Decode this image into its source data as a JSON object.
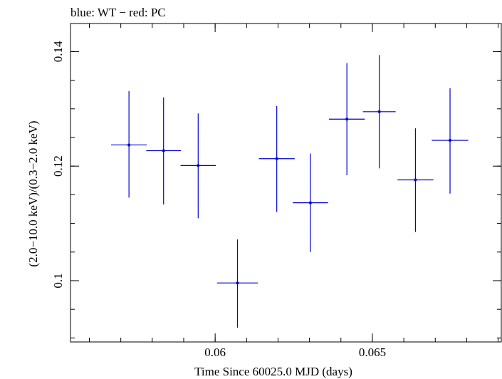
{
  "chart_data": {
    "type": "scatter",
    "title": "blue: WT − red: PC",
    "xlabel": "Time Since 60025.0 MJD (days)",
    "ylabel": "(2.0−10.0 keV)/(0.3−2.0 keV)",
    "xlim": [
      0.0554,
      0.0691
    ],
    "ylim": [
      0.0893,
      0.1449
    ],
    "x_ticks": [
      {
        "value": 0.06,
        "label": "0.06"
      },
      {
        "value": 0.065,
        "label": "0.065"
      }
    ],
    "x_minor_step": 0.001,
    "y_ticks": [
      {
        "value": 0.1,
        "label": "0.1"
      },
      {
        "value": 0.12,
        "label": "0.12"
      },
      {
        "value": 0.14,
        "label": "0.14"
      }
    ],
    "y_minor_step": 0.005,
    "grid": false,
    "series": [
      {
        "color": "#0000d0",
        "points": [
          {
            "x": 0.05726,
            "xerr": 0.00057,
            "y": 0.1237,
            "yerr_lo": 0.0092,
            "yerr_hi": 0.0094
          },
          {
            "x": 0.05836,
            "xerr": 0.00055,
            "y": 0.1227,
            "yerr_lo": 0.0094,
            "yerr_hi": 0.0093
          },
          {
            "x": 0.05946,
            "xerr": 0.00056,
            "y": 0.1201,
            "yerr_lo": 0.0092,
            "yerr_hi": 0.0091
          },
          {
            "x": 0.06071,
            "xerr": 0.00065,
            "y": 0.0996,
            "yerr_lo": 0.0078,
            "yerr_hi": 0.0076
          },
          {
            "x": 0.06196,
            "xerr": 0.00057,
            "y": 0.1213,
            "yerr_lo": 0.0093,
            "yerr_hi": 0.0092
          },
          {
            "x": 0.06303,
            "xerr": 0.00056,
            "y": 0.1136,
            "yerr_lo": 0.0086,
            "yerr_hi": 0.0086
          },
          {
            "x": 0.06419,
            "xerr": 0.00057,
            "y": 0.1282,
            "yerr_lo": 0.0098,
            "yerr_hi": 0.0098
          },
          {
            "x": 0.06522,
            "xerr": 0.00052,
            "y": 0.1295,
            "yerr_lo": 0.0099,
            "yerr_hi": 0.0099
          },
          {
            "x": 0.06637,
            "xerr": 0.00057,
            "y": 0.1176,
            "yerr_lo": 0.0091,
            "yerr_hi": 0.009
          },
          {
            "x": 0.06747,
            "xerr": 0.00058,
            "y": 0.1245,
            "yerr_lo": 0.0093,
            "yerr_hi": 0.0091
          }
        ]
      }
    ]
  }
}
